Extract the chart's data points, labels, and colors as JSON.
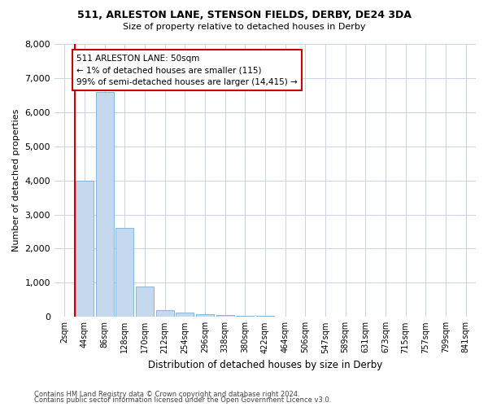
{
  "title": "511, ARLESTON LANE, STENSON FIELDS, DERBY, DE24 3DA",
  "subtitle": "Size of property relative to detached houses in Derby",
  "xlabel": "Distribution of detached houses by size in Derby",
  "ylabel": "Number of detached properties",
  "footnote1": "Contains HM Land Registry data © Crown copyright and database right 2024.",
  "footnote2": "Contains public sector information licensed under the Open Government Licence v3.0.",
  "annotation_title": "511 ARLESTON LANE: 50sqm",
  "annotation_line2": "← 1% of detached houses are smaller (115)",
  "annotation_line3": "99% of semi-detached houses are larger (14,415) →",
  "bar_color": "#c5d8ed",
  "bar_edge_color": "#7aafd4",
  "vline_color": "#cc0000",
  "annotation_box_color": "#ffffff",
  "annotation_box_edge": "#cc0000",
  "background_color": "#ffffff",
  "grid_color": "#c8d4e4",
  "bin_labels": [
    "2sqm",
    "44sqm",
    "86sqm",
    "128sqm",
    "170sqm",
    "212sqm",
    "254sqm",
    "296sqm",
    "338sqm",
    "380sqm",
    "422sqm",
    "464sqm",
    "506sqm",
    "547sqm",
    "589sqm",
    "631sqm",
    "673sqm",
    "715sqm",
    "757sqm",
    "799sqm",
    "841sqm"
  ],
  "bar_values": [
    10,
    4000,
    6600,
    2600,
    900,
    200,
    130,
    75,
    50,
    30,
    25,
    5,
    0,
    0,
    0,
    0,
    0,
    0,
    0,
    0,
    0
  ],
  "vline_x": 0.5,
  "ylim": [
    0,
    8000
  ],
  "yticks": [
    0,
    1000,
    2000,
    3000,
    4000,
    5000,
    6000,
    7000,
    8000
  ]
}
